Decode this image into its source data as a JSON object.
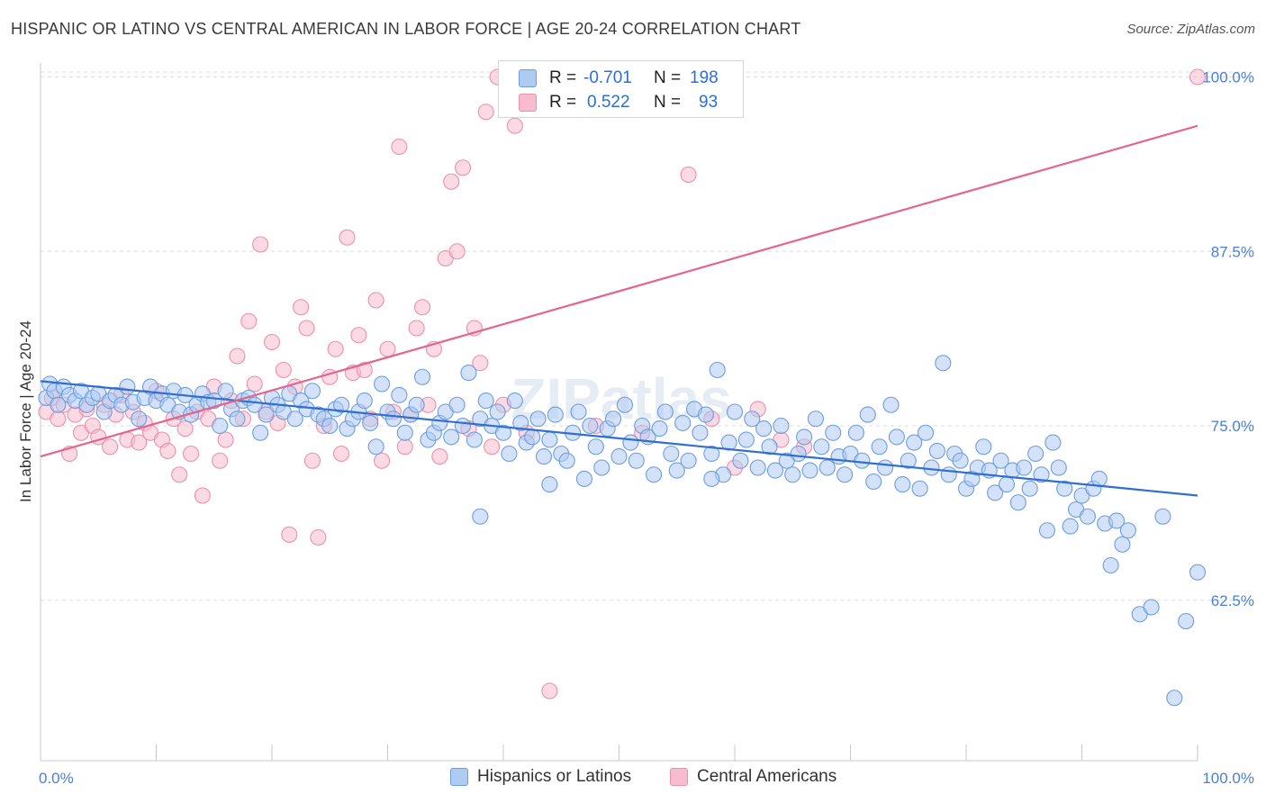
{
  "header": {
    "title": "HISPANIC OR LATINO VS CENTRAL AMERICAN IN LABOR FORCE | AGE 20-24 CORRELATION CHART",
    "source": "Source: ZipAtlas.com"
  },
  "legend": {
    "rows": [
      {
        "r_label": "R =",
        "r_value": "-0.701",
        "n_label": "N =",
        "n_value": "198"
      },
      {
        "r_label": "R =",
        "r_value": "0.522",
        "n_label": "N =",
        "n_value": "93"
      }
    ]
  },
  "colors": {
    "blue_fill": "#aecbf3",
    "blue_stroke": "#6b9de0",
    "blue_line": "#2f6fd0",
    "pink_fill": "#f7bccd",
    "pink_stroke": "#ec8fab",
    "pink_line": "#e4648e",
    "grid": "#dedede",
    "axis_text": "#4a7fd6"
  },
  "chart_data": {
    "type": "scatter",
    "xlabel": "",
    "ylabel": "In Labor Force | Age 20-24",
    "xlim": [
      0,
      100
    ],
    "ylim": [
      51,
      101
    ],
    "x_tick_labels": [
      "0.0%",
      "100.0%"
    ],
    "y_ticks": [
      62.5,
      75.0,
      87.5,
      100.0
    ],
    "y_tick_labels": [
      "62.5%",
      "75.0%",
      "87.5%",
      "100.0%"
    ],
    "grid": true,
    "watermark": "ZIPatlas",
    "series": [
      {
        "name": "Hispanics or Latinos",
        "color": "blue",
        "trend": {
          "x": [
            0,
            100
          ],
          "y": [
            78.2,
            70.0
          ]
        },
        "points": [
          [
            0.5,
            77.0
          ],
          [
            0.8,
            78.0
          ],
          [
            1.2,
            77.5
          ],
          [
            1.5,
            76.5
          ],
          [
            2,
            77.8
          ],
          [
            2.5,
            77.2
          ],
          [
            3,
            76.8
          ],
          [
            3.5,
            77.5
          ],
          [
            4,
            76.5
          ],
          [
            4.5,
            77.0
          ],
          [
            5,
            77.3
          ],
          [
            5.5,
            76.0
          ],
          [
            6,
            76.8
          ],
          [
            6.5,
            77.2
          ],
          [
            7,
            76.5
          ],
          [
            7.5,
            77.8
          ],
          [
            8,
            76.7
          ],
          [
            8.5,
            75.5
          ],
          [
            9,
            77.0
          ],
          [
            9.5,
            77.8
          ],
          [
            10,
            76.8
          ],
          [
            10.5,
            77.3
          ],
          [
            11,
            76.5
          ],
          [
            11.5,
            77.5
          ],
          [
            12,
            76.0
          ],
          [
            12.5,
            77.2
          ],
          [
            13,
            75.8
          ],
          [
            13.5,
            76.5
          ],
          [
            14,
            77.3
          ],
          [
            14.5,
            76.7
          ],
          [
            15,
            76.8
          ],
          [
            15.5,
            75.0
          ],
          [
            16,
            77.5
          ],
          [
            16.5,
            76.2
          ],
          [
            17,
            75.5
          ],
          [
            17.5,
            76.8
          ],
          [
            18,
            77.0
          ],
          [
            18.5,
            76.5
          ],
          [
            19,
            74.5
          ],
          [
            19.5,
            75.8
          ],
          [
            20,
            77.0
          ],
          [
            20.5,
            76.5
          ],
          [
            21,
            76.0
          ],
          [
            21.5,
            77.3
          ],
          [
            22,
            75.5
          ],
          [
            22.5,
            76.8
          ],
          [
            23,
            76.2
          ],
          [
            23.5,
            77.5
          ],
          [
            24,
            75.8
          ],
          [
            24.5,
            75.5
          ],
          [
            25,
            75.0
          ],
          [
            25.5,
            76.2
          ],
          [
            26,
            76.5
          ],
          [
            26.5,
            74.8
          ],
          [
            27,
            75.5
          ],
          [
            27.5,
            76.0
          ],
          [
            28,
            76.8
          ],
          [
            28.5,
            75.2
          ],
          [
            29,
            73.5
          ],
          [
            29.5,
            78.0
          ],
          [
            30,
            76.0
          ],
          [
            30.5,
            75.5
          ],
          [
            31,
            77.2
          ],
          [
            31.5,
            74.5
          ],
          [
            32,
            75.8
          ],
          [
            32.5,
            76.5
          ],
          [
            33,
            78.5
          ],
          [
            33.5,
            74.0
          ],
          [
            34,
            74.5
          ],
          [
            34.5,
            75.2
          ],
          [
            35,
            76.0
          ],
          [
            35.5,
            74.2
          ],
          [
            36,
            76.5
          ],
          [
            36.5,
            75.0
          ],
          [
            37,
            78.8
          ],
          [
            37.5,
            74.0
          ],
          [
            38,
            75.5
          ],
          [
            38.5,
            76.8
          ],
          [
            39,
            75.0
          ],
          [
            39.5,
            76.0
          ],
          [
            40,
            74.5
          ],
          [
            40.5,
            73.0
          ],
          [
            41,
            76.8
          ],
          [
            41.5,
            75.2
          ],
          [
            42,
            73.8
          ],
          [
            42.5,
            74.2
          ],
          [
            43,
            75.5
          ],
          [
            43.5,
            72.8
          ],
          [
            44,
            74.0
          ],
          [
            44.5,
            75.8
          ],
          [
            45,
            73.0
          ],
          [
            45.5,
            72.5
          ],
          [
            46,
            74.5
          ],
          [
            46.5,
            76.0
          ],
          [
            47,
            71.2
          ],
          [
            47.5,
            75.0
          ],
          [
            48,
            73.5
          ],
          [
            48.5,
            72.0
          ],
          [
            49,
            74.8
          ],
          [
            49.5,
            75.5
          ],
          [
            50,
            72.8
          ],
          [
            50.5,
            76.5
          ],
          [
            51,
            73.8
          ],
          [
            51.5,
            72.5
          ],
          [
            52,
            75.0
          ],
          [
            52.5,
            74.2
          ],
          [
            53,
            71.5
          ],
          [
            53.5,
            74.8
          ],
          [
            54,
            76.0
          ],
          [
            54.5,
            73.0
          ],
          [
            55,
            71.8
          ],
          [
            55.5,
            75.2
          ],
          [
            56,
            72.5
          ],
          [
            56.5,
            76.2
          ],
          [
            57,
            74.5
          ],
          [
            57.5,
            75.8
          ],
          [
            58,
            73.0
          ],
          [
            58.5,
            79.0
          ],
          [
            59,
            71.5
          ],
          [
            59.5,
            73.8
          ],
          [
            60,
            76.0
          ],
          [
            60.5,
            72.5
          ],
          [
            61,
            74.0
          ],
          [
            61.5,
            75.5
          ],
          [
            62,
            72.0
          ],
          [
            62.5,
            74.8
          ],
          [
            63,
            73.5
          ],
          [
            63.5,
            71.8
          ],
          [
            64,
            75.0
          ],
          [
            64.5,
            72.5
          ],
          [
            65,
            71.5
          ],
          [
            65.5,
            73.0
          ],
          [
            66,
            74.2
          ],
          [
            66.5,
            71.8
          ],
          [
            67,
            75.5
          ],
          [
            67.5,
            73.5
          ],
          [
            68,
            72.0
          ],
          [
            68.5,
            74.5
          ],
          [
            69,
            72.8
          ],
          [
            69.5,
            71.5
          ],
          [
            70,
            73.0
          ],
          [
            70.5,
            74.5
          ],
          [
            71,
            72.5
          ],
          [
            71.5,
            75.8
          ],
          [
            72,
            71.0
          ],
          [
            72.5,
            73.5
          ],
          [
            73,
            72.0
          ],
          [
            73.5,
            76.5
          ],
          [
            74,
            74.2
          ],
          [
            74.5,
            70.8
          ],
          [
            75,
            72.5
          ],
          [
            75.5,
            73.8
          ],
          [
            76,
            70.5
          ],
          [
            76.5,
            74.5
          ],
          [
            77,
            72.0
          ],
          [
            77.5,
            73.2
          ],
          [
            78,
            79.5
          ],
          [
            78.5,
            71.5
          ],
          [
            79,
            73.0
          ],
          [
            79.5,
            72.5
          ],
          [
            80,
            70.5
          ],
          [
            80.5,
            71.2
          ],
          [
            81,
            72.0
          ],
          [
            81.5,
            73.5
          ],
          [
            82,
            71.8
          ],
          [
            82.5,
            70.2
          ],
          [
            83,
            72.5
          ],
          [
            83.5,
            70.8
          ],
          [
            84,
            71.8
          ],
          [
            84.5,
            69.5
          ],
          [
            85,
            72.0
          ],
          [
            85.5,
            70.5
          ],
          [
            86,
            73.0
          ],
          [
            86.5,
            71.5
          ],
          [
            87,
            67.5
          ],
          [
            87.5,
            73.8
          ],
          [
            88,
            72.0
          ],
          [
            88.5,
            70.5
          ],
          [
            89,
            67.8
          ],
          [
            89.5,
            69.0
          ],
          [
            90,
            70.0
          ],
          [
            90.5,
            68.5
          ],
          [
            91,
            70.5
          ],
          [
            91.5,
            71.2
          ],
          [
            92,
            68.0
          ],
          [
            92.5,
            65.0
          ],
          [
            93,
            68.2
          ],
          [
            93.5,
            66.5
          ],
          [
            94,
            67.5
          ],
          [
            95,
            61.5
          ],
          [
            96,
            62.0
          ],
          [
            97,
            68.5
          ],
          [
            98,
            55.5
          ],
          [
            99,
            61.0
          ],
          [
            100,
            64.5
          ],
          [
            44,
            70.8
          ],
          [
            58,
            71.2
          ],
          [
            38,
            68.5
          ]
        ]
      },
      {
        "name": "Central Americans",
        "color": "pink",
        "trend": {
          "x": [
            0,
            100
          ],
          "y": [
            72.8,
            96.5
          ]
        },
        "points": [
          [
            0.5,
            76.0
          ],
          [
            1,
            77.0
          ],
          [
            1.5,
            75.5
          ],
          [
            2,
            76.5
          ],
          [
            2.5,
            73.0
          ],
          [
            3,
            75.8
          ],
          [
            3.5,
            74.5
          ],
          [
            4,
            76.2
          ],
          [
            4.5,
            75.0
          ],
          [
            5,
            74.2
          ],
          [
            5.5,
            76.5
          ],
          [
            6,
            73.5
          ],
          [
            6.5,
            75.8
          ],
          [
            7,
            77.2
          ],
          [
            7.5,
            74.0
          ],
          [
            8,
            76.0
          ],
          [
            8.5,
            73.8
          ],
          [
            9,
            75.2
          ],
          [
            9.5,
            74.5
          ],
          [
            10,
            77.5
          ],
          [
            10.5,
            74.0
          ],
          [
            11,
            73.2
          ],
          [
            11.5,
            75.5
          ],
          [
            12,
            71.5
          ],
          [
            12.5,
            74.8
          ],
          [
            13,
            73.0
          ],
          [
            13.5,
            76.0
          ],
          [
            14,
            70.0
          ],
          [
            14.5,
            75.5
          ],
          [
            15,
            77.8
          ],
          [
            15.5,
            72.5
          ],
          [
            16,
            74.0
          ],
          [
            16.5,
            76.8
          ],
          [
            17,
            80.0
          ],
          [
            17.5,
            75.5
          ],
          [
            18,
            82.5
          ],
          [
            18.5,
            78.0
          ],
          [
            19,
            88.0
          ],
          [
            19.5,
            76.0
          ],
          [
            20,
            81.0
          ],
          [
            20.5,
            75.2
          ],
          [
            21,
            79.0
          ],
          [
            21.5,
            67.2
          ],
          [
            22,
            77.8
          ],
          [
            22.5,
            83.5
          ],
          [
            23,
            82.0
          ],
          [
            23.5,
            72.5
          ],
          [
            24,
            67.0
          ],
          [
            24.5,
            75.0
          ],
          [
            25,
            78.5
          ],
          [
            25.5,
            80.5
          ],
          [
            26,
            73.0
          ],
          [
            26.5,
            88.5
          ],
          [
            27,
            78.8
          ],
          [
            27.5,
            81.5
          ],
          [
            28,
            79.0
          ],
          [
            28.5,
            75.5
          ],
          [
            29,
            84.0
          ],
          [
            29.5,
            72.5
          ],
          [
            30,
            80.5
          ],
          [
            30.5,
            76.0
          ],
          [
            31,
            95.0
          ],
          [
            31.5,
            73.5
          ],
          [
            32,
            75.8
          ],
          [
            32.5,
            82.0
          ],
          [
            33,
            83.5
          ],
          [
            33.5,
            76.5
          ],
          [
            34,
            80.5
          ],
          [
            34.5,
            72.8
          ],
          [
            35,
            87.0
          ],
          [
            35.5,
            92.5
          ],
          [
            36,
            87.5
          ],
          [
            36.5,
            93.5
          ],
          [
            37,
            74.8
          ],
          [
            37.5,
            82.0
          ],
          [
            38,
            79.5
          ],
          [
            38.5,
            97.5
          ],
          [
            39,
            73.5
          ],
          [
            39.5,
            100.0
          ],
          [
            40,
            76.5
          ],
          [
            41,
            96.5
          ],
          [
            42,
            74.5
          ],
          [
            44,
            56.0
          ],
          [
            48,
            75.0
          ],
          [
            52,
            74.5
          ],
          [
            55,
            100.0
          ],
          [
            56,
            93.0
          ],
          [
            58,
            75.5
          ],
          [
            60,
            72.0
          ],
          [
            62,
            76.2
          ],
          [
            64,
            74.0
          ],
          [
            66,
            73.5
          ],
          [
            100,
            100.0
          ]
        ]
      }
    ]
  },
  "bottom_legend": {
    "items": [
      {
        "label": "Hispanics or Latinos"
      },
      {
        "label": "Central Americans"
      }
    ]
  }
}
